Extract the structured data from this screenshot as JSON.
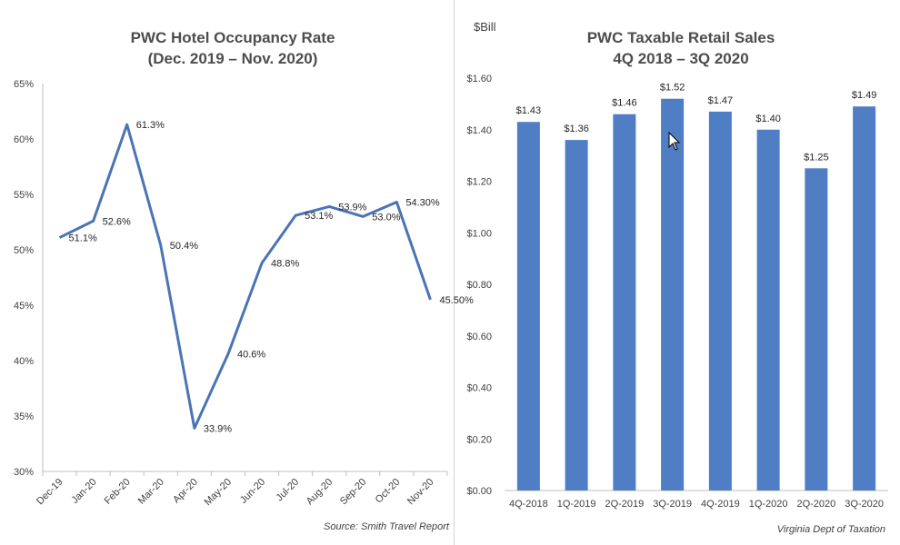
{
  "chart_data": [
    {
      "type": "line",
      "title_line1": "PWC Hotel Occupancy Rate",
      "title_line2": "(Dec. 2019 – Nov. 2020)",
      "xlabel": "",
      "ylabel": "",
      "categories": [
        "Dec-19",
        "Jan-20",
        "Feb-20",
        "Mar-20",
        "Apr-20",
        "May-20",
        "Jun-20",
        "Jul-20",
        "Aug-20",
        "Sep-20",
        "Oct-20",
        "Nov-20"
      ],
      "values": [
        51.1,
        52.6,
        61.3,
        50.4,
        33.9,
        40.6,
        48.8,
        53.1,
        53.9,
        53.0,
        54.3,
        45.5
      ],
      "data_labels": [
        "51.1%",
        "52.6%",
        "61.3%",
        "50.4%",
        "33.9%",
        "40.6%",
        "48.8%",
        "53.1%",
        "53.9%",
        "53.0%",
        "54.30%",
        "45.50%"
      ],
      "ylim": [
        30,
        65
      ],
      "y_ticks": [
        30,
        35,
        40,
        45,
        50,
        55,
        60,
        65
      ],
      "y_tick_labels": [
        "30%",
        "35%",
        "40%",
        "45%",
        "50%",
        "55%",
        "60%",
        "65%"
      ],
      "grid": false,
      "source": "Source: Smith Travel Report",
      "line_color": "#4a74b5"
    },
    {
      "type": "bar",
      "title_line1": "PWC Taxable Retail Sales",
      "title_line2": "4Q 2018 – 3Q 2020",
      "unit_label": "$Bill",
      "xlabel": "",
      "ylabel": "$Bill",
      "categories": [
        "4Q-2018",
        "1Q-2019",
        "2Q-2019",
        "3Q-2019",
        "4Q-2019",
        "1Q-2020",
        "2Q-2020",
        "3Q-2020"
      ],
      "values": [
        1.43,
        1.36,
        1.46,
        1.52,
        1.47,
        1.4,
        1.25,
        1.49
      ],
      "data_labels": [
        "$1.43",
        "$1.36",
        "$1.46",
        "$1.52",
        "$1.47",
        "$1.40",
        "$1.25",
        "$1.49"
      ],
      "ylim": [
        0,
        1.6
      ],
      "y_ticks": [
        0,
        0.2,
        0.4,
        0.6,
        0.8,
        1.0,
        1.2,
        1.4,
        1.6
      ],
      "y_tick_labels": [
        "$0.00",
        "$0.20",
        "$0.40",
        "$0.60",
        "$0.80",
        "$1.00",
        "$1.20",
        "$1.40",
        "$1.60"
      ],
      "grid": false,
      "source": "Virginia Dept of Taxation",
      "bar_color": "#4f7ec4"
    }
  ]
}
